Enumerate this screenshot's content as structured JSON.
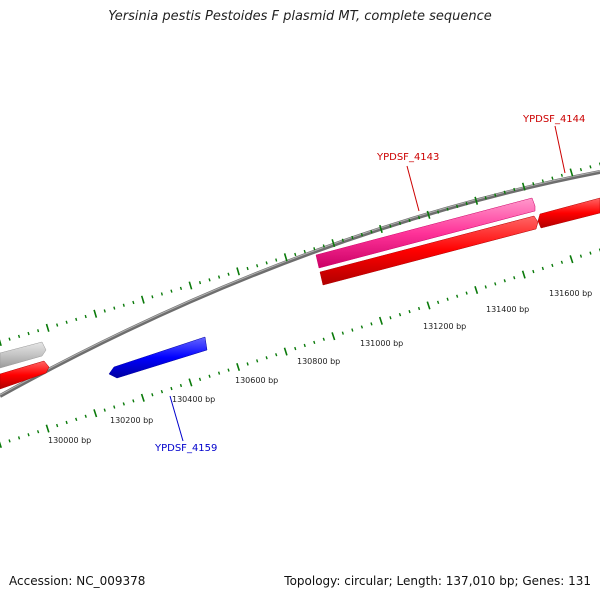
{
  "title": "Yersinia pestis Pestoides F plasmid MT, complete sequence",
  "footer": {
    "accession": "Accession: NC_009378",
    "summary": "Topology: circular; Length: 137,010 bp; Genes: 131"
  },
  "gene_labels": {
    "ypdsf_4143": "YPDSF_4143",
    "ypdsf_4144": "YPDSF_4144",
    "ypdsf_4159": "YPDSF_4159"
  },
  "tick_labels": [
    "130000 bp",
    "130200 bp",
    "130400 bp",
    "130600 bp",
    "130800 bp",
    "131000 bp",
    "131200 bp",
    "131400 bp",
    "131600 bp"
  ],
  "colors": {
    "backbone": "#808080",
    "tick": "#0a7a0a",
    "forward_gene": "#ff3399",
    "reverse_gene": "#ff0000",
    "minus_gene": "#0000ff",
    "pseudo_gene": "#c0c0c0",
    "label_red": "#cc0000",
    "label_blue": "#0000cc"
  }
}
